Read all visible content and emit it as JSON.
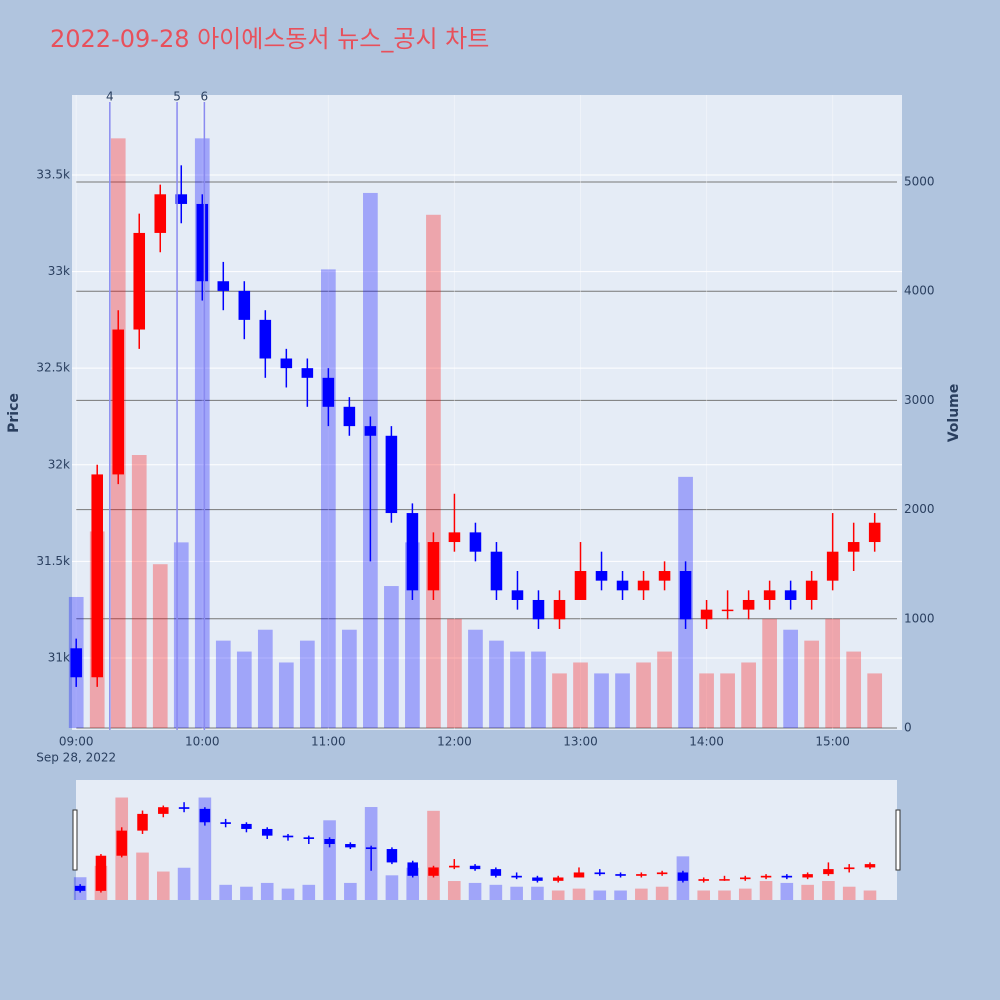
{
  "chart_data": {
    "type": "candlestick",
    "title": "2022-09-28 아이에스동서 뉴스_공시 차트",
    "x": [
      "09:00",
      "09:10",
      "09:20",
      "09:30",
      "09:40",
      "09:50",
      "10:00",
      "10:10",
      "10:20",
      "10:30",
      "10:40",
      "10:50",
      "11:00",
      "11:10",
      "11:20",
      "11:30",
      "11:40",
      "11:50",
      "12:00",
      "12:10",
      "12:20",
      "12:30",
      "12:40",
      "12:50",
      "13:00",
      "13:10",
      "13:20",
      "13:30",
      "13:40",
      "13:50",
      "14:00",
      "14:10",
      "14:20",
      "14:30",
      "14:40",
      "14:50",
      "15:00",
      "15:10",
      "15:20"
    ],
    "open": [
      31050,
      30900,
      31950,
      32700,
      33200,
      33400,
      33350,
      32950,
      32900,
      32750,
      32550,
      32500,
      32450,
      32300,
      32200,
      32150,
      31750,
      31350,
      31600,
      31650,
      31550,
      31350,
      31300,
      31200,
      31300,
      31450,
      31400,
      31350,
      31400,
      31450,
      31200,
      31250,
      31250,
      31300,
      31350,
      31300,
      31400,
      31550,
      31600
    ],
    "high": [
      31100,
      32000,
      32800,
      33300,
      33450,
      33550,
      33400,
      33050,
      32950,
      32800,
      32600,
      32550,
      32500,
      32350,
      32250,
      32200,
      31800,
      31650,
      31850,
      31700,
      31600,
      31450,
      31350,
      31350,
      31600,
      31550,
      31450,
      31450,
      31500,
      31500,
      31300,
      31350,
      31350,
      31400,
      31400,
      31450,
      31750,
      31700,
      31750
    ],
    "low": [
      30850,
      30850,
      31900,
      32600,
      33100,
      33250,
      32850,
      32800,
      32650,
      32450,
      32400,
      32300,
      32200,
      32150,
      31500,
      31700,
      31300,
      31300,
      31550,
      31500,
      31300,
      31250,
      31150,
      31150,
      31300,
      31350,
      31300,
      31300,
      31350,
      31150,
      31150,
      31200,
      31200,
      31250,
      31250,
      31250,
      31350,
      31450,
      31550
    ],
    "close": [
      30900,
      31950,
      32700,
      33200,
      33400,
      33350,
      32950,
      32900,
      32750,
      32550,
      32500,
      32450,
      32300,
      32200,
      32150,
      31750,
      31350,
      31600,
      31650,
      31550,
      31350,
      31300,
      31200,
      31300,
      31450,
      31400,
      31350,
      31400,
      31450,
      31200,
      31250,
      31250,
      31300,
      31350,
      31300,
      31400,
      31550,
      31600,
      31700
    ],
    "volume": [
      1200,
      1800,
      5400,
      2500,
      1500,
      1700,
      5400,
      800,
      700,
      900,
      600,
      800,
      4200,
      900,
      4900,
      1300,
      1700,
      4700,
      1000,
      900,
      800,
      700,
      700,
      500,
      600,
      500,
      500,
      600,
      700,
      2300,
      500,
      500,
      600,
      1000,
      900,
      800,
      1000,
      700,
      500
    ],
    "up_color": "#ff0000",
    "down_color": "#0000ff",
    "xlim": [
      "08:58",
      "15:33"
    ],
    "xticks": [
      "09:00",
      "10:00",
      "11:00",
      "12:00",
      "13:00",
      "14:00",
      "15:00"
    ],
    "x_date_label": "Sep 28, 2022",
    "ylim": [
      30627,
      33914
    ],
    "yticks": [
      {
        "value": 31000,
        "label": "31k"
      },
      {
        "value": 31500,
        "label": "31.5k"
      },
      {
        "value": 32000,
        "label": "32k"
      },
      {
        "value": 32500,
        "label": "32.5k"
      },
      {
        "value": 33000,
        "label": "33k"
      },
      {
        "value": 33500,
        "label": "33.5k"
      }
    ],
    "y2lim": [
      0,
      5797
    ],
    "y2ticks": [
      0,
      1000,
      2000,
      3000,
      4000,
      5000
    ],
    "y_label": "Price",
    "y2_label": "Volume",
    "markers": [
      {
        "label": "4",
        "x": "09:16"
      },
      {
        "label": "5",
        "x": "09:48"
      },
      {
        "label": "6",
        "x": "10:01"
      }
    ],
    "grid": true,
    "rangeslider": true
  }
}
